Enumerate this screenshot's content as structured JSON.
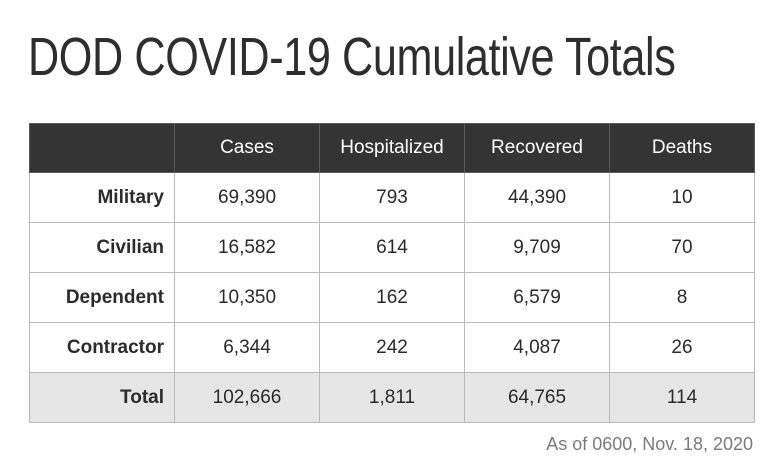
{
  "title": "DOD COVID-19 Cumulative Totals",
  "table": {
    "columns": [
      "",
      "Cases",
      "Hospitalized",
      "Recovered",
      "Deaths"
    ],
    "rows": [
      {
        "label": "Military",
        "cases": "69,390",
        "hospitalized": "793",
        "recovered": "44,390",
        "deaths": "10"
      },
      {
        "label": "Civilian",
        "cases": "16,582",
        "hospitalized": "614",
        "recovered": "9,709",
        "deaths": "70"
      },
      {
        "label": "Dependent",
        "cases": "10,350",
        "hospitalized": "162",
        "recovered": "6,579",
        "deaths": "8"
      },
      {
        "label": "Contractor",
        "cases": "6,344",
        "hospitalized": "242",
        "recovered": "4,087",
        "deaths": "26"
      }
    ],
    "total": {
      "label": "Total",
      "cases": "102,666",
      "hospitalized": "1,811",
      "recovered": "64,765",
      "deaths": "114"
    }
  },
  "footnote": "As of 0600, Nov. 18, 2020",
  "colors": {
    "header_bg": "#343434",
    "header_text": "#ffffff",
    "total_row_bg": "#e6e6e6",
    "border": "#b9b9b9",
    "footnote_text": "#7a7a7a"
  }
}
